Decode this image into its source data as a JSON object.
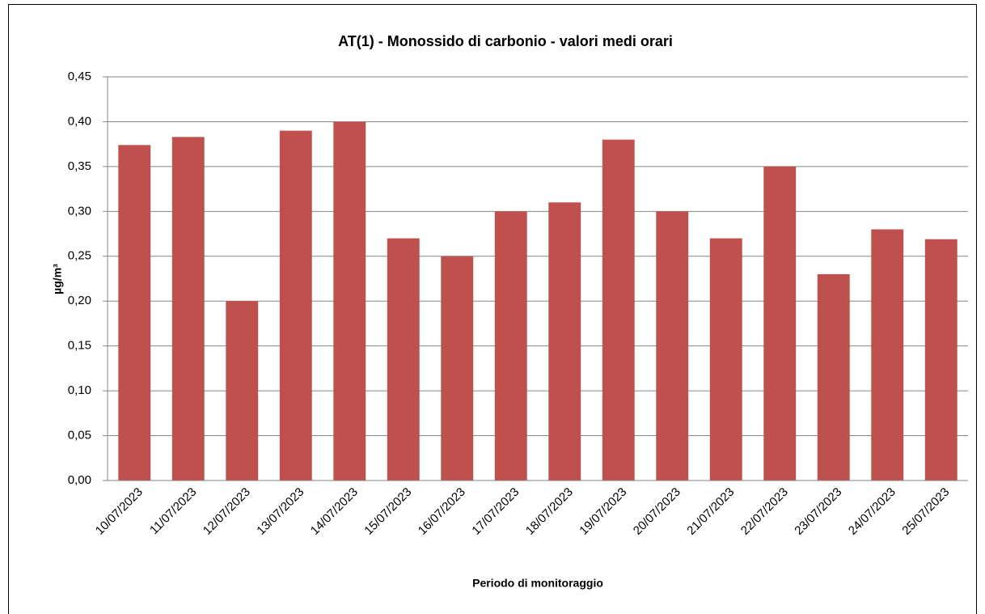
{
  "chart_data": {
    "type": "bar",
    "title": "AT(1) - Monossido di carbonio - valori medi orari",
    "x_label": "Periodo di  monitoraggio",
    "y_label": "µg/m³",
    "categories": [
      "10/07/2023",
      "11/07/2023",
      "12/07/2023",
      "13/07/2023",
      "14/07/2023",
      "15/07/2023",
      "16/07/2023",
      "17/07/2023",
      "18/07/2023",
      "19/07/2023",
      "20/07/2023",
      "21/07/2023",
      "22/07/2023",
      "23/07/2023",
      "24/07/2023",
      "25/07/2023"
    ],
    "values": [
      0.374,
      0.383,
      0.2,
      0.39,
      0.4,
      0.27,
      0.25,
      0.3,
      0.31,
      0.38,
      0.3,
      0.27,
      0.35,
      0.23,
      0.28,
      0.269
    ],
    "color": "#c0504d",
    "ylim": [
      0,
      0.45
    ],
    "yticks": [
      {
        "value": 0,
        "label": "0,00"
      },
      {
        "value": 0.05,
        "label": "0,05"
      },
      {
        "value": 0.1,
        "label": "0,10"
      },
      {
        "value": 0.15,
        "label": "0,15"
      },
      {
        "value": 0.2,
        "label": "0,20"
      },
      {
        "value": 0.25,
        "label": "0,25"
      },
      {
        "value": 0.3,
        "label": "0,30"
      },
      {
        "value": 0.35,
        "label": "0,35"
      },
      {
        "value": 0.4,
        "label": "0,40"
      },
      {
        "value": 0.45,
        "label": "0,45"
      }
    ],
    "grid": true
  }
}
